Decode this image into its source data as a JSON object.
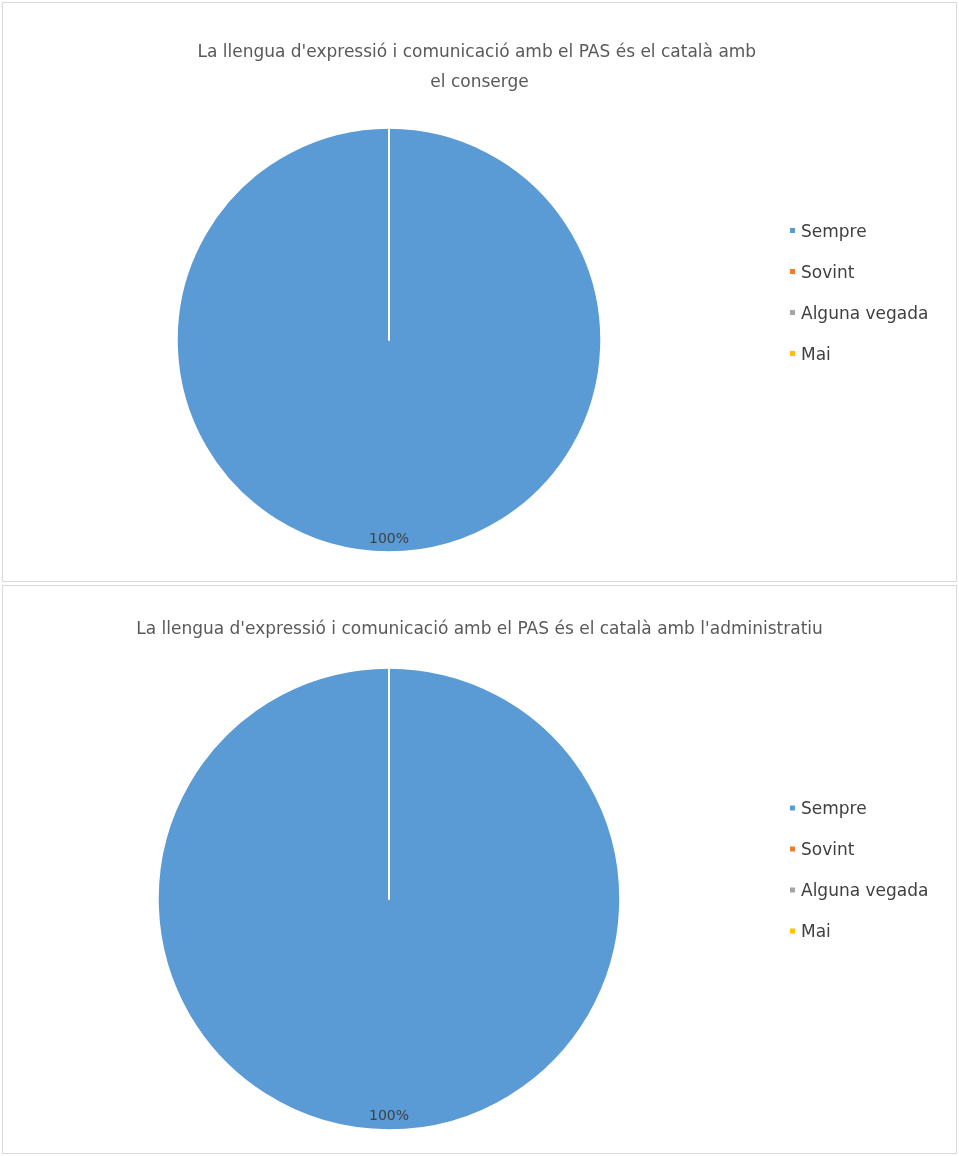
{
  "chart_data": [
    {
      "type": "pie",
      "title": "La llengua d'expressió i comunicació amb el PAS és el català amb el conserge",
      "categories": [
        "Sempre",
        "Sovint",
        "Alguna vegada",
        "Mai"
      ],
      "values": [
        100,
        0,
        0,
        0
      ],
      "colors": [
        "#5b9bd5",
        "#ed7d31",
        "#a5a5a5",
        "#ffc000"
      ],
      "value_labels": [
        "100%",
        null,
        null,
        null
      ],
      "legend": "right"
    },
    {
      "type": "pie",
      "title": "La llengua d'expressió i comunicació amb el PAS és el català amb l'administratiu",
      "categories": [
        "Sempre",
        "Sovint",
        "Alguna vegada",
        "Mai"
      ],
      "values": [
        100,
        0,
        0,
        0
      ],
      "colors": [
        "#5b9bd5",
        "#ed7d31",
        "#a5a5a5",
        "#ffc000"
      ],
      "value_labels": [
        "100%",
        null,
        null,
        null
      ],
      "legend": "right"
    }
  ]
}
